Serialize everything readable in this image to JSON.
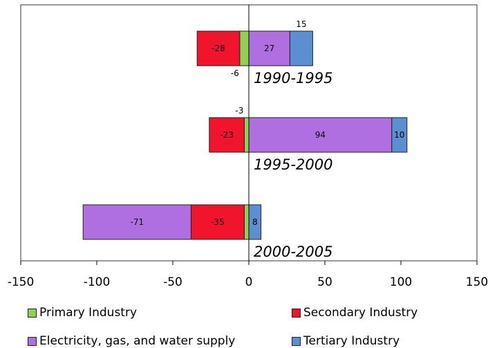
{
  "chart_data": {
    "type": "bar",
    "orientation": "horizontal",
    "stacked": true,
    "categories": [
      "1990-1995",
      "1995-2000",
      "2000-2005"
    ],
    "series": [
      {
        "name": "Primary Industry",
        "color": "#92D050",
        "values": [
          -6,
          -3,
          -3
        ]
      },
      {
        "name": "Secondary Industry",
        "color": "#F0142D",
        "values": [
          -28,
          -23,
          -35
        ]
      },
      {
        "name": "Electricity, gas, and water supply",
        "color": "#B06FE0",
        "values": [
          27,
          94,
          -71
        ]
      },
      {
        "name": "Tertiary Industry",
        "color": "#5B8FD0",
        "values": [
          15,
          10,
          8
        ]
      }
    ],
    "data_labels": [
      [
        "-6",
        "-28",
        "27",
        "15"
      ],
      [
        "-3",
        "-23",
        "94",
        "10"
      ],
      [
        "",
        "-35",
        "-71",
        "8"
      ]
    ],
    "xlim": [
      -150,
      150
    ],
    "x_ticks": [
      "-150",
      "-100",
      "-50",
      "0",
      "50",
      "100",
      "150"
    ],
    "title": "",
    "xlabel": "",
    "ylabel": "",
    "legend_position": "bottom"
  }
}
